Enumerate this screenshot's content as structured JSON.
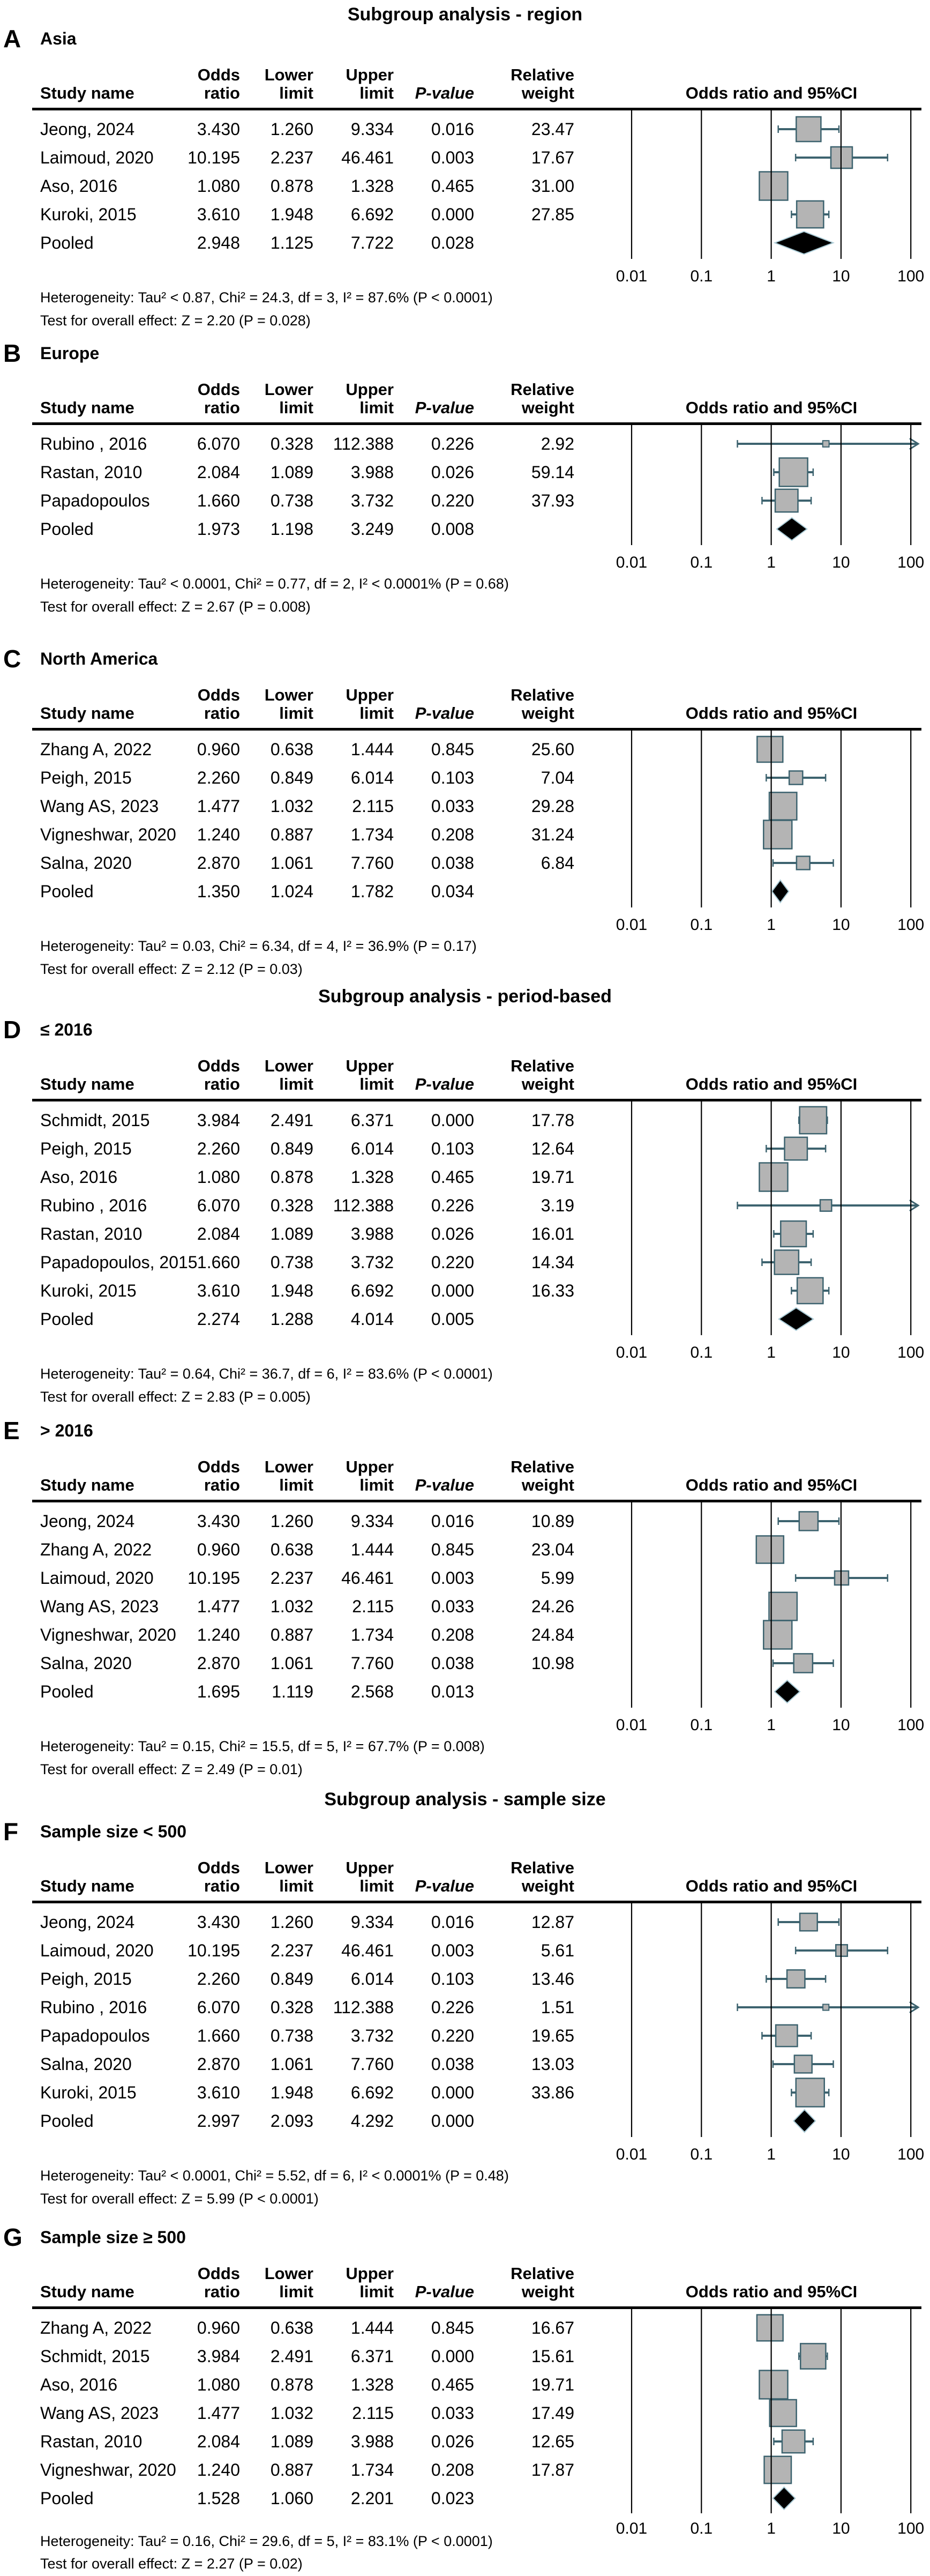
{
  "colors": {
    "text": "#000000",
    "rule": "#000000",
    "gridline": "#000000",
    "ci_line": "#3d636f",
    "square_fill": "#b4b4b4",
    "square_stroke": "#3d636f",
    "diamond_fill": "#000000",
    "diamond_halo": "#aacbd6"
  },
  "columns": {
    "study": "Study name",
    "or": [
      "Odds",
      "ratio"
    ],
    "lower": [
      "Lower",
      "limit"
    ],
    "upper": [
      "Upper",
      "limit"
    ],
    "p": [
      "",
      "P-value"
    ],
    "weight": [
      "Relative",
      "weight"
    ],
    "plot": "Odds ratio and 95%CI"
  },
  "chart_data": {
    "type": "forest",
    "x_scale": "log10",
    "x_ticks": [
      0.01,
      0.1,
      1,
      10,
      100
    ],
    "x_tick_labels": [
      "0.01",
      "0.1",
      "1",
      "10",
      "100"
    ],
    "effect_measure": "Odds ratio",
    "sections": [
      {
        "title": "Subgroup analysis - region",
        "panels": [
          {
            "letter": "A",
            "subtitle": "Asia",
            "rows": [
              {
                "study": "Jeong, 2024",
                "or": "3.430",
                "lower": "1.260",
                "upper": "9.334",
                "p": "0.016",
                "weight": "23.47"
              },
              {
                "study": "Laimoud, 2020",
                "or": "10.195",
                "lower": "2.237",
                "upper": "46.461",
                "p": "0.003",
                "weight": "17.67"
              },
              {
                "study": "Aso, 2016",
                "or": "1.080",
                "lower": "0.878",
                "upper": "1.328",
                "p": "0.465",
                "weight": "31.00"
              },
              {
                "study": "Kuroki, 2015",
                "or": "3.610",
                "lower": "1.948",
                "upper": "6.692",
                "p": "0.000",
                "weight": "27.85"
              },
              {
                "study": "Pooled",
                "or": "2.948",
                "lower": "1.125",
                "upper": "7.722",
                "p": "0.028",
                "weight": "",
                "pooled": true
              }
            ],
            "heterogeneity": "Heterogeneity: Tau² < 0.87, Chi² = 24.3, df = 3, I² = 87.6% (P < 0.0001)",
            "overall_effect": "Test for overall effect: Z = 2.20 (P = 0.028)"
          },
          {
            "letter": "B",
            "subtitle": "Europe",
            "rows": [
              {
                "study": "Rubino , 2016",
                "or": "6.070",
                "lower": "0.328",
                "upper": "112.388",
                "p": "0.226",
                "weight": "2.92"
              },
              {
                "study": "Rastan, 2010",
                "or": "2.084",
                "lower": "1.089",
                "upper": "3.988",
                "p": "0.026",
                "weight": "59.14"
              },
              {
                "study": "Papadopoulos",
                "or": "1.660",
                "lower": "0.738",
                "upper": "3.732",
                "p": "0.220",
                "weight": "37.93"
              },
              {
                "study": "Pooled",
                "or": "1.973",
                "lower": "1.198",
                "upper": "3.249",
                "p": "0.008",
                "weight": "",
                "pooled": true
              }
            ],
            "heterogeneity": "Heterogeneity: Tau² < 0.0001, Chi² = 0.77, df = 2, I² < 0.0001% (P = 0.68)",
            "overall_effect": "Test for overall effect: Z = 2.67 (P = 0.008)"
          },
          {
            "letter": "C",
            "subtitle": "North America",
            "rows": [
              {
                "study": "Zhang A, 2022",
                "or": "0.960",
                "lower": "0.638",
                "upper": "1.444",
                "p": "0.845",
                "weight": "25.60"
              },
              {
                "study": "Peigh, 2015",
                "or": "2.260",
                "lower": "0.849",
                "upper": "6.014",
                "p": "0.103",
                "weight": "7.04"
              },
              {
                "study": "Wang AS, 2023",
                "or": "1.477",
                "lower": "1.032",
                "upper": "2.115",
                "p": "0.033",
                "weight": "29.28"
              },
              {
                "study": "Vigneshwar, 2020",
                "or": "1.240",
                "lower": "0.887",
                "upper": "1.734",
                "p": "0.208",
                "weight": "31.24"
              },
              {
                "study": "Salna, 2020",
                "or": "2.870",
                "lower": "1.061",
                "upper": "7.760",
                "p": "0.038",
                "weight": "6.84"
              },
              {
                "study": "Pooled",
                "or": "1.350",
                "lower": "1.024",
                "upper": "1.782",
                "p": "0.034",
                "weight": "",
                "pooled": true
              }
            ],
            "heterogeneity": "Heterogeneity: Tau² = 0.03, Chi² = 6.34, df = 4, I² = 36.9% (P = 0.17)",
            "overall_effect": "Test for overall effect: Z = 2.12 (P = 0.03)"
          }
        ]
      },
      {
        "title": "Subgroup analysis - period-based",
        "panels": [
          {
            "letter": "D",
            "subtitle": "≤ 2016",
            "rows": [
              {
                "study": "Schmidt, 2015",
                "or": "3.984",
                "lower": "2.491",
                "upper": "6.371",
                "p": "0.000",
                "weight": "17.78"
              },
              {
                "study": "Peigh, 2015",
                "or": "2.260",
                "lower": "0.849",
                "upper": "6.014",
                "p": "0.103",
                "weight": "12.64"
              },
              {
                "study": "Aso, 2016",
                "or": "1.080",
                "lower": "0.878",
                "upper": "1.328",
                "p": "0.465",
                "weight": "19.71"
              },
              {
                "study": "Rubino , 2016",
                "or": "6.070",
                "lower": "0.328",
                "upper": "112.388",
                "p": "0.226",
                "weight": "3.19"
              },
              {
                "study": "Rastan, 2010",
                "or": "2.084",
                "lower": "1.089",
                "upper": "3.988",
                "p": "0.026",
                "weight": "16.01"
              },
              {
                "study": "Papadopoulos, 2015",
                "or": "1.660",
                "lower": "0.738",
                "upper": "3.732",
                "p": "0.220",
                "weight": "14.34"
              },
              {
                "study": "Kuroki, 2015",
                "or": "3.610",
                "lower": "1.948",
                "upper": "6.692",
                "p": "0.000",
                "weight": "16.33"
              },
              {
                "study": "Pooled",
                "or": "2.274",
                "lower": "1.288",
                "upper": "4.014",
                "p": "0.005",
                "weight": "",
                "pooled": true
              }
            ],
            "heterogeneity": "Heterogeneity: Tau² = 0.64, Chi² = 36.7, df = 6, I² = 83.6% (P < 0.0001)",
            "overall_effect": "Test for overall effect: Z = 2.83 (P = 0.005)"
          },
          {
            "letter": "E",
            "subtitle": "> 2016",
            "rows": [
              {
                "study": "Jeong, 2024",
                "or": "3.430",
                "lower": "1.260",
                "upper": "9.334",
                "p": "0.016",
                "weight": "10.89"
              },
              {
                "study": "Zhang A, 2022",
                "or": "0.960",
                "lower": "0.638",
                "upper": "1.444",
                "p": "0.845",
                "weight": "23.04"
              },
              {
                "study": "Laimoud, 2020",
                "or": "10.195",
                "lower": "2.237",
                "upper": "46.461",
                "p": "0.003",
                "weight": "5.99"
              },
              {
                "study": "Wang AS, 2023",
                "or": "1.477",
                "lower": "1.032",
                "upper": "2.115",
                "p": "0.033",
                "weight": "24.26"
              },
              {
                "study": "Vigneshwar, 2020",
                "or": "1.240",
                "lower": "0.887",
                "upper": "1.734",
                "p": "0.208",
                "weight": "24.84"
              },
              {
                "study": "Salna, 2020",
                "or": "2.870",
                "lower": "1.061",
                "upper": "7.760",
                "p": "0.038",
                "weight": "10.98"
              },
              {
                "study": "Pooled",
                "or": "1.695",
                "lower": "1.119",
                "upper": "2.568",
                "p": "0.013",
                "weight": "",
                "pooled": true
              }
            ],
            "heterogeneity": "Heterogeneity: Tau² = 0.15, Chi² = 15.5, df = 5, I² = 67.7% (P = 0.008)",
            "overall_effect": "Test for overall effect: Z = 2.49 (P = 0.01)"
          }
        ]
      },
      {
        "title": "Subgroup analysis - sample size",
        "panels": [
          {
            "letter": "F",
            "subtitle": "Sample size < 500",
            "rows": [
              {
                "study": "Jeong, 2024",
                "or": "3.430",
                "lower": "1.260",
                "upper": "9.334",
                "p": "0.016",
                "weight": "12.87"
              },
              {
                "study": "Laimoud, 2020",
                "or": "10.195",
                "lower": "2.237",
                "upper": "46.461",
                "p": "0.003",
                "weight": "5.61"
              },
              {
                "study": "Peigh, 2015",
                "or": "2.260",
                "lower": "0.849",
                "upper": "6.014",
                "p": "0.103",
                "weight": "13.46"
              },
              {
                "study": "Rubino , 2016",
                "or": "6.070",
                "lower": "0.328",
                "upper": "112.388",
                "p": "0.226",
                "weight": "1.51"
              },
              {
                "study": "Papadopoulos",
                "or": "1.660",
                "lower": "0.738",
                "upper": "3.732",
                "p": "0.220",
                "weight": "19.65"
              },
              {
                "study": "Salna, 2020",
                "or": "2.870",
                "lower": "1.061",
                "upper": "7.760",
                "p": "0.038",
                "weight": "13.03"
              },
              {
                "study": "Kuroki, 2015",
                "or": "3.610",
                "lower": "1.948",
                "upper": "6.692",
                "p": "0.000",
                "weight": "33.86"
              },
              {
                "study": "Pooled",
                "or": "2.997",
                "lower": "2.093",
                "upper": "4.292",
                "p": "0.000",
                "weight": "",
                "pooled": true
              }
            ],
            "heterogeneity": "Heterogeneity: Tau² < 0.0001, Chi² = 5.52, df = 6, I² < 0.0001% (P = 0.48)",
            "overall_effect": "Test for overall effect: Z = 5.99 (P < 0.0001)"
          },
          {
            "letter": "G",
            "subtitle": "Sample size ≥ 500",
            "rows": [
              {
                "study": "Zhang A, 2022",
                "or": "0.960",
                "lower": "0.638",
                "upper": "1.444",
                "p": "0.845",
                "weight": "16.67"
              },
              {
                "study": "Schmidt, 2015",
                "or": "3.984",
                "lower": "2.491",
                "upper": "6.371",
                "p": "0.000",
                "weight": "15.61"
              },
              {
                "study": "Aso, 2016",
                "or": "1.080",
                "lower": "0.878",
                "upper": "1.328",
                "p": "0.465",
                "weight": "19.71"
              },
              {
                "study": "Wang AS, 2023",
                "or": "1.477",
                "lower": "1.032",
                "upper": "2.115",
                "p": "0.033",
                "weight": "17.49"
              },
              {
                "study": "Rastan, 2010",
                "or": "2.084",
                "lower": "1.089",
                "upper": "3.988",
                "p": "0.026",
                "weight": "12.65"
              },
              {
                "study": "Vigneshwar, 2020",
                "or": "1.240",
                "lower": "0.887",
                "upper": "1.734",
                "p": "0.208",
                "weight": "17.87"
              },
              {
                "study": "Pooled",
                "or": "1.528",
                "lower": "1.060",
                "upper": "2.201",
                "p": "0.023",
                "weight": "",
                "pooled": true
              }
            ],
            "heterogeneity": "Heterogeneity: Tau² = 0.16, Chi² = 29.6, df = 5, I² = 83.1% (P < 0.0001)",
            "overall_effect": "Test for overall effect: Z = 2.27 (P = 0.02)"
          }
        ]
      }
    ]
  }
}
